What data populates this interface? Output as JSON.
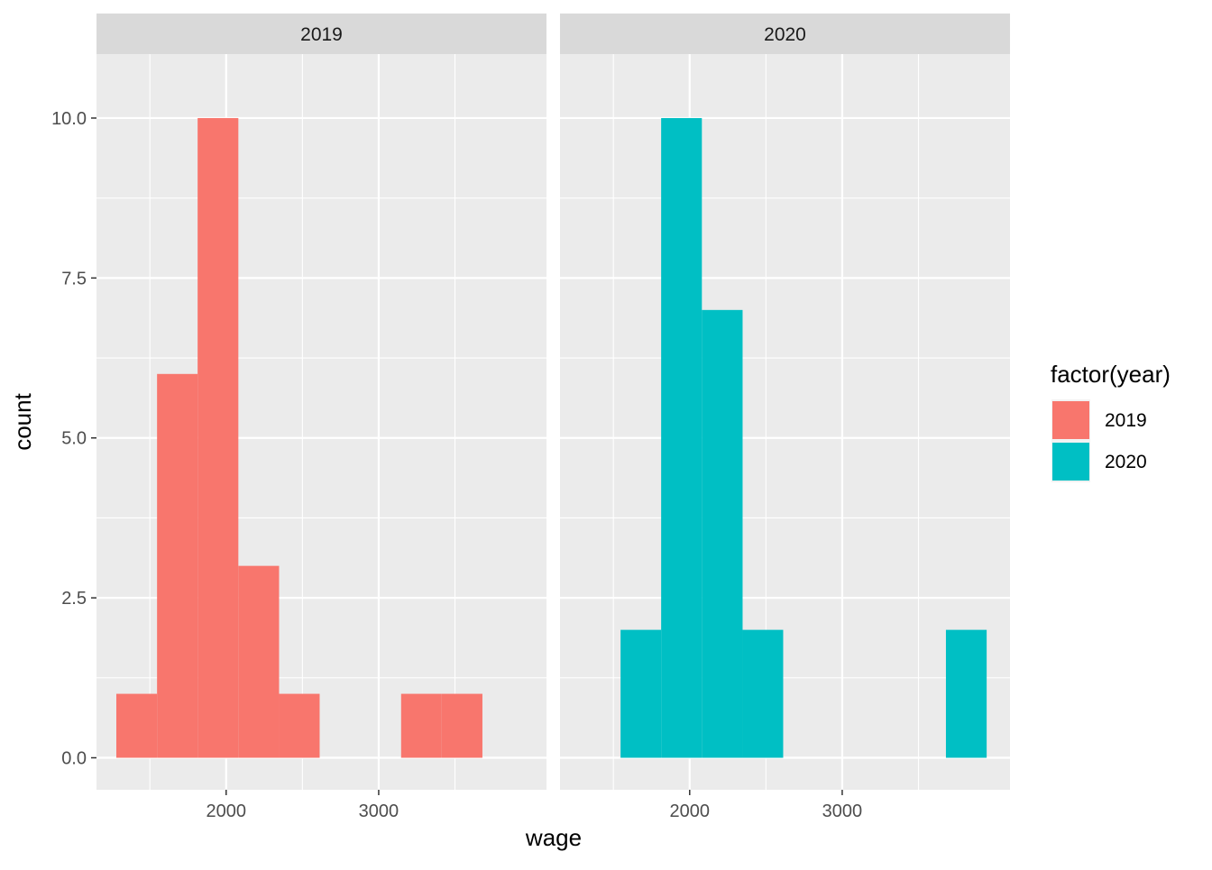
{
  "chart_data": {
    "type": "bar",
    "subtype": "faceted-histogram",
    "xlabel": "wage",
    "ylabel": "count",
    "x_ticks": [
      "2000",
      "3000"
    ],
    "y_ticks": [
      "0.0",
      "2.5",
      "5.0",
      "7.5",
      "10.0"
    ],
    "xlim": [
      1150,
      4100
    ],
    "ylim": [
      -0.5,
      11.0
    ],
    "grid": true,
    "legend": {
      "title": "factor(year)",
      "placement": "right",
      "entries": [
        {
          "label": "2019",
          "color": "#F8766D"
        },
        {
          "label": "2020",
          "color": "#00BFC4"
        }
      ]
    },
    "facets": [
      {
        "label": "2019",
        "color": "#F8766D",
        "bins": [
          {
            "x0": 1280,
            "x1": 1547,
            "count": 1
          },
          {
            "x0": 1547,
            "x1": 1813,
            "count": 6
          },
          {
            "x0": 1813,
            "x1": 2080,
            "count": 10
          },
          {
            "x0": 2080,
            "x1": 2347,
            "count": 3
          },
          {
            "x0": 2347,
            "x1": 2613,
            "count": 1
          },
          {
            "x0": 3147,
            "x1": 3413,
            "count": 1
          },
          {
            "x0": 3413,
            "x1": 3680,
            "count": 1
          }
        ]
      },
      {
        "label": "2020",
        "color": "#00BFC4",
        "bins": [
          {
            "x0": 1547,
            "x1": 1813,
            "count": 2
          },
          {
            "x0": 1813,
            "x1": 2080,
            "count": 10
          },
          {
            "x0": 2080,
            "x1": 2347,
            "count": 7
          },
          {
            "x0": 2347,
            "x1": 2613,
            "count": 2
          },
          {
            "x0": 3680,
            "x1": 3947,
            "count": 2
          }
        ]
      }
    ]
  }
}
